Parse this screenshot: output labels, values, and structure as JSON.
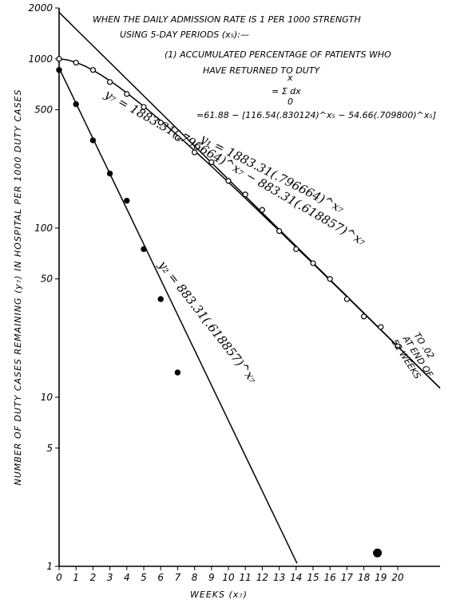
{
  "chart_data": {
    "type": "line",
    "y_scale": "log",
    "ylim": [
      1,
      2000
    ],
    "xlim": [
      0,
      22.5
    ],
    "xlabel": "WEEKS (x₇)",
    "ylabel": "NUMBER OF DUTY CASES REMAINING (y₇) IN HOSPITAL PER 1000 DUTY CASES",
    "x_ticks": [
      "0",
      "1",
      "2",
      "3",
      "4",
      "5",
      "6",
      "7",
      "8",
      "9",
      "10",
      "11",
      "12",
      "13",
      "14",
      "15",
      "16",
      "17",
      "18",
      "19",
      "20"
    ],
    "y_ticks": [
      {
        "value": 2000,
        "label": "2000"
      },
      {
        "value": 1000,
        "label": "1000"
      },
      {
        "value": 500,
        "label": "500"
      },
      {
        "value": 100,
        "label": "100"
      },
      {
        "value": 50,
        "label": "50"
      },
      {
        "value": 10,
        "label": "10"
      },
      {
        "value": 5,
        "label": "5"
      },
      {
        "value": 1,
        "label": "1"
      }
    ],
    "annotations": {
      "title_line1": "WHEN THE DAILY ADMISSION RATE IS 1 PER 1000 STRENGTH",
      "title_line2": "USING 5-DAY PERIODS (x₅):—",
      "note_line1": "(1) ACCUMULATED PERCENTAGE OF PATIENTS WHO",
      "note_line2": "HAVE RETURNED TO DUTY",
      "formula_sum": "= Σ dx",
      "formula_sum_upper": "x",
      "formula_sum_lower": "0",
      "formula_main": "=61.88 − [116.54(.830124)^x₅ − 54.66(.709800)^x₅]",
      "end_note_line1": "TO .02",
      "end_note_line2": "AT END OF",
      "end_note_line3": "52 WEEKS"
    },
    "curve_labels": {
      "y1": "y₁ = 1883.31(.796664)^x₇",
      "yt": "y₇ = 1883.31(.796664)^x₇ − 883.31(.618857)^x₇",
      "y2": "y₂ = 883.31(.618857)^x₇"
    },
    "series": [
      {
        "key": "y1",
        "style": "line",
        "a": 1883.31,
        "b": 0.796664,
        "x": [
          0,
          22.5
        ]
      },
      {
        "key": "yt",
        "style": "line",
        "x": [
          0,
          0.5,
          1,
          1.5,
          2,
          2.5,
          3,
          3.5,
          4,
          5,
          6,
          7,
          8,
          9,
          10,
          11,
          12,
          13,
          14,
          15,
          16,
          17,
          18,
          19,
          20,
          21,
          22.5
        ]
      },
      {
        "key": "y2",
        "style": "line",
        "a": 883.31,
        "b": 0.618857,
        "x": [
          0,
          14.05
        ]
      },
      {
        "key": "open_points",
        "style": "open-markers",
        "x": [
          0,
          1,
          2,
          3,
          4,
          5,
          6,
          7,
          8,
          9,
          10,
          11,
          12,
          13,
          14,
          15,
          16,
          17,
          18,
          19,
          20
        ],
        "y": [
          1000,
          950,
          860,
          730,
          620,
          520,
          420,
          340,
          280,
          245,
          190,
          158,
          128,
          96,
          75,
          62,
          50,
          38,
          30,
          26,
          20
        ]
      },
      {
        "key": "filled_points",
        "style": "filled-markers",
        "x": [
          0,
          1,
          2,
          3,
          4,
          5,
          6,
          7,
          18.8
        ],
        "y": [
          860,
          540,
          330,
          210,
          145,
          75,
          38,
          14,
          1.2
        ]
      }
    ]
  }
}
